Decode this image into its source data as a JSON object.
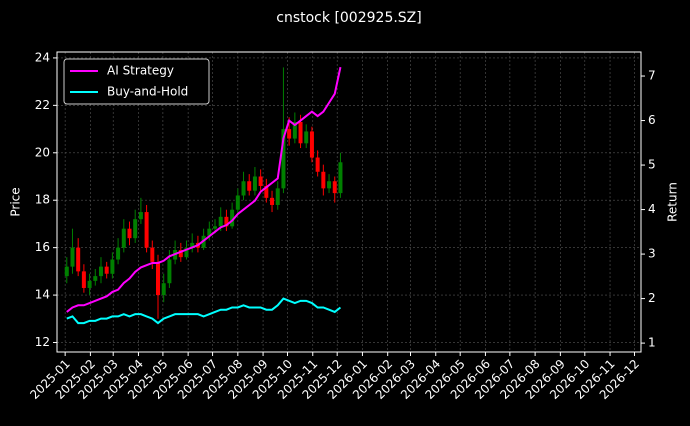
{
  "chart_data": {
    "type": "candlestick",
    "title": "cnstock [002925.SZ]",
    "ylabel": "Price",
    "y2label": "Return",
    "x": [
      "2025-01-03",
      "2025-01-10",
      "2025-01-17",
      "2025-01-24",
      "2025-01-31",
      "2025-02-07",
      "2025-02-14",
      "2025-02-21",
      "2025-02-28",
      "2025-03-07",
      "2025-03-14",
      "2025-03-21",
      "2025-03-28",
      "2025-04-04",
      "2025-04-11",
      "2025-04-18",
      "2025-04-25",
      "2025-05-02",
      "2025-05-09",
      "2025-05-16",
      "2025-05-23",
      "2025-05-30",
      "2025-06-06",
      "2025-06-13",
      "2025-06-20",
      "2025-06-27",
      "2025-07-04",
      "2025-07-11",
      "2025-07-18",
      "2025-07-25",
      "2025-08-01",
      "2025-08-08",
      "2025-08-15",
      "2025-08-22",
      "2025-08-29",
      "2025-09-05",
      "2025-09-12",
      "2025-09-19",
      "2025-09-26",
      "2025-10-03",
      "2025-10-10",
      "2025-10-17",
      "2025-10-24",
      "2025-10-31",
      "2025-11-07",
      "2025-11-14",
      "2025-11-21",
      "2025-11-28",
      "2025-12-05"
    ],
    "open": [
      14.8,
      15.2,
      16.0,
      15.0,
      14.3,
      14.6,
      14.8,
      15.2,
      14.9,
      15.5,
      16.0,
      16.8,
      16.4,
      17.2,
      17.5,
      16.0,
      15.4,
      14.0,
      14.5,
      15.5,
      15.9,
      15.6,
      16.0,
      16.2,
      16.0,
      16.5,
      16.8,
      16.9,
      17.3,
      16.9,
      17.6,
      18.2,
      18.8,
      18.4,
      19.0,
      18.6,
      18.1,
      17.8,
      18.5,
      21.0,
      20.6,
      21.3,
      20.4,
      20.9,
      19.8,
      19.2,
      18.5,
      18.8,
      18.3
    ],
    "high": [
      15.6,
      16.8,
      16.4,
      15.3,
      14.9,
      15.1,
      15.6,
      15.4,
      15.8,
      16.4,
      17.2,
      17.1,
      17.6,
      18.1,
      17.8,
      16.3,
      15.7,
      14.9,
      15.9,
      16.3,
      16.2,
      16.3,
      16.6,
      16.5,
      16.8,
      17.1,
      17.2,
      17.7,
      17.6,
      17.9,
      18.5,
      19.2,
      19.1,
      19.4,
      19.3,
      18.9,
      18.4,
      18.8,
      23.6,
      21.5,
      21.7,
      21.6,
      21.2,
      21.1,
      20.1,
      19.5,
      19.1,
      19.0,
      20.0
    ],
    "low": [
      14.5,
      14.9,
      14.8,
      14.1,
      14.0,
      14.4,
      14.5,
      14.7,
      14.7,
      15.3,
      15.8,
      16.1,
      16.2,
      17.0,
      15.8,
      15.1,
      13.0,
      13.7,
      14.3,
      15.3,
      15.4,
      15.5,
      15.8,
      15.8,
      15.9,
      16.3,
      16.6,
      16.7,
      16.7,
      16.8,
      17.4,
      18.0,
      18.2,
      18.2,
      18.4,
      17.9,
      17.5,
      17.6,
      18.3,
      20.3,
      20.4,
      20.2,
      20.2,
      19.6,
      19.0,
      18.2,
      18.3,
      17.9,
      18.1
    ],
    "close": [
      15.2,
      16.0,
      15.0,
      14.3,
      14.6,
      14.8,
      15.2,
      14.9,
      15.5,
      16.0,
      16.8,
      16.4,
      17.2,
      17.5,
      16.0,
      15.4,
      14.0,
      14.5,
      15.5,
      15.9,
      15.6,
      16.0,
      16.2,
      16.0,
      16.5,
      16.8,
      16.9,
      17.3,
      16.9,
      17.6,
      18.2,
      18.8,
      18.4,
      19.0,
      18.6,
      18.1,
      17.8,
      18.5,
      21.0,
      20.6,
      21.3,
      20.4,
      20.9,
      19.8,
      19.2,
      18.5,
      18.8,
      18.3,
      19.6
    ],
    "up_color": "#008000",
    "down_color": "#ff0000",
    "series": [
      {
        "name": "AI Strategy",
        "color": "#ff00ff",
        "axis": "y2",
        "values": [
          1.7,
          1.8,
          1.85,
          1.85,
          1.9,
          1.95,
          2.0,
          2.05,
          2.15,
          2.2,
          2.35,
          2.45,
          2.6,
          2.7,
          2.75,
          2.8,
          2.8,
          2.85,
          2.95,
          3.0,
          3.05,
          3.1,
          3.15,
          3.2,
          3.3,
          3.4,
          3.5,
          3.6,
          3.65,
          3.75,
          3.9,
          4.0,
          4.1,
          4.2,
          4.4,
          4.5,
          4.6,
          4.7,
          5.6,
          6.0,
          5.9,
          6.0,
          6.1,
          6.2,
          6.1,
          6.2,
          6.4,
          6.6,
          7.2
        ]
      },
      {
        "name": "Buy-and-Hold",
        "color": "#00ffff",
        "axis": "y2",
        "values": [
          1.55,
          1.6,
          1.45,
          1.45,
          1.5,
          1.5,
          1.55,
          1.55,
          1.6,
          1.6,
          1.65,
          1.6,
          1.65,
          1.65,
          1.6,
          1.55,
          1.45,
          1.55,
          1.6,
          1.65,
          1.65,
          1.65,
          1.65,
          1.65,
          1.6,
          1.65,
          1.7,
          1.75,
          1.75,
          1.8,
          1.8,
          1.85,
          1.8,
          1.8,
          1.8,
          1.75,
          1.75,
          1.85,
          2.0,
          1.95,
          1.9,
          1.95,
          1.95,
          1.9,
          1.8,
          1.8,
          1.75,
          1.7,
          1.8
        ]
      }
    ],
    "xlim": [
      "2024-12-22",
      "2026-12-09"
    ],
    "xticks": [
      "2025-01",
      "2025-02",
      "2025-03",
      "2025-04",
      "2025-05",
      "2025-06",
      "2025-07",
      "2025-08",
      "2025-09",
      "2025-10",
      "2025-11",
      "2025-12",
      "2026-01",
      "2026-02",
      "2026-03",
      "2026-04",
      "2026-05",
      "2026-06",
      "2026-07",
      "2026-08",
      "2026-09",
      "2026-10",
      "2026-11",
      "2026-12"
    ],
    "ylim": [
      11.6,
      24.25
    ],
    "yticks": [
      12,
      14,
      16,
      18,
      20,
      22,
      24
    ],
    "y2lim": [
      0.8,
      7.54
    ],
    "y2ticks": [
      1,
      2,
      3,
      4,
      5,
      6,
      7
    ],
    "grid": true,
    "legend": "upper left"
  }
}
